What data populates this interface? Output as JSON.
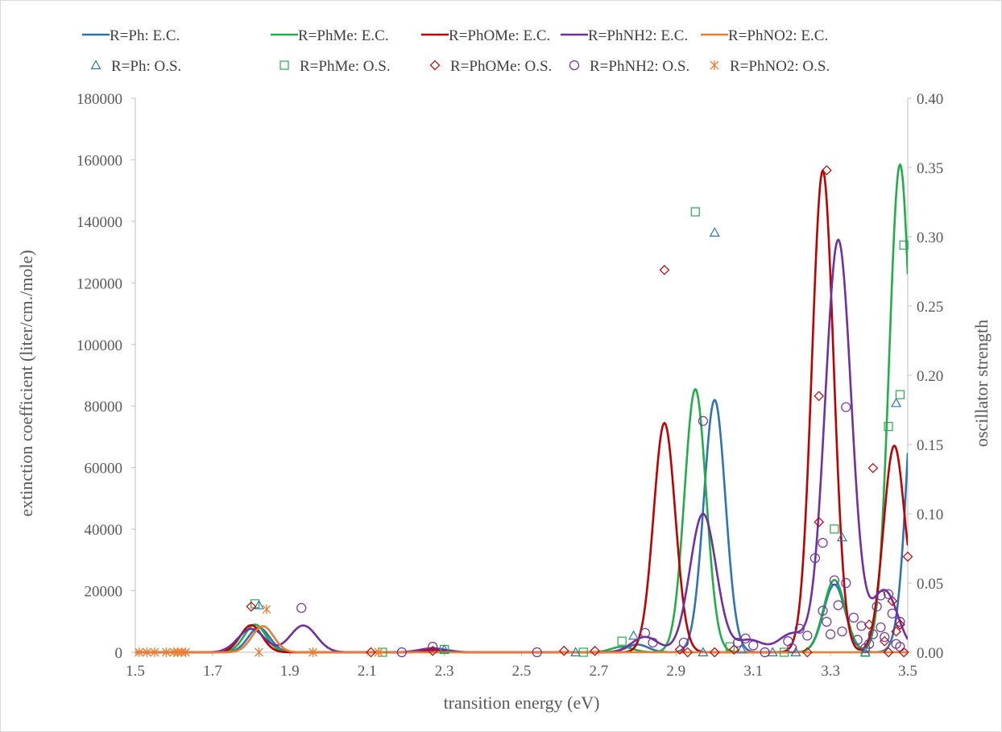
{
  "chart_data": {
    "type": "line",
    "title": "",
    "xlabel": "transition energy (eV)",
    "ylabel": "extinction coefficient (liter/cm./mole)",
    "y2label": "oscillator strength",
    "xlim": [
      1.5,
      3.5
    ],
    "ylim": [
      0,
      180000
    ],
    "y2lim": [
      0,
      0.4
    ],
    "x_ticks": [
      "1.5",
      "1.7",
      "1.9",
      "2.1",
      "2.3",
      "2.5",
      "2.7",
      "2.9",
      "3.1",
      "3.3",
      "3.5"
    ],
    "y_ticks": [
      "0",
      "20000",
      "40000",
      "60000",
      "80000",
      "100000",
      "120000",
      "140000",
      "160000",
      "180000"
    ],
    "y2_ticks": [
      "0.00",
      "0.05",
      "0.10",
      "0.15",
      "0.20",
      "0.25",
      "0.30",
      "0.35",
      "0.40"
    ],
    "grid": false,
    "legend_position": "top",
    "legend": [
      {
        "key": "ph_ec",
        "label": "R=Ph: E.C.",
        "kind": "line",
        "color": "#2e74b5"
      },
      {
        "key": "phme_ec",
        "label": "R=PhMe: E.C.",
        "kind": "line",
        "color": "#22ad4b"
      },
      {
        "key": "phome_ec",
        "label": "R=PhOMe: E.C.",
        "kind": "line",
        "color": "#c00000"
      },
      {
        "key": "phnh2_ec",
        "label": "R=PhNH2: E.C.",
        "kind": "line",
        "color": "#7030a0"
      },
      {
        "key": "phno2_ec",
        "label": "R=PhNO2: E.C.",
        "kind": "line",
        "color": "#ed7d31"
      },
      {
        "key": "ph_os",
        "label": "R=Ph: O.S.",
        "kind": "triangle",
        "color": "#2e74b5"
      },
      {
        "key": "phme_os",
        "label": "R=PhMe: O.S.",
        "kind": "square",
        "color": "#22ad4b"
      },
      {
        "key": "phome_os",
        "label": "R=PhOMe: O.S.",
        "kind": "diamond",
        "color": "#c00000"
      },
      {
        "key": "phnh2_os",
        "label": "R=PhNH2: O.S.",
        "kind": "circle",
        "color": "#7030a0"
      },
      {
        "key": "phno2_os",
        "label": "R=PhNO2: O.S.",
        "kind": "asterisk",
        "color": "#ed7d31"
      }
    ],
    "ec_series": [
      {
        "key": "ph_ec",
        "name": "R=Ph: E.C.",
        "color": "#2e74b5",
        "sigma": 0.028,
        "peaks": [
          [
            1.82,
            8000
          ],
          [
            2.28,
            900
          ],
          [
            2.8,
            2500
          ],
          [
            3.0,
            82000
          ],
          [
            3.31,
            22000
          ],
          [
            3.53,
            115000
          ]
        ]
      },
      {
        "key": "phme_ec",
        "name": "R=PhMe: E.C.",
        "color": "#22ad4b",
        "sigma": 0.028,
        "peaks": [
          [
            1.81,
            9000
          ],
          [
            2.29,
            900
          ],
          [
            2.76,
            1800
          ],
          [
            2.95,
            85500
          ],
          [
            3.31,
            23500
          ],
          [
            3.48,
            158500
          ]
        ]
      },
      {
        "key": "phome_ec",
        "name": "R=PhOMe: E.C.",
        "color": "#c00000",
        "sigma": 0.028,
        "peaks": [
          [
            1.8,
            8800
          ],
          [
            2.27,
            800
          ],
          [
            2.87,
            74500
          ],
          [
            3.28,
            156500
          ],
          [
            3.465,
            67000
          ],
          [
            3.56,
            40000
          ]
        ]
      },
      {
        "key": "phnh2_ec",
        "name": "R=PhNH2: E.C.",
        "color": "#7030a0",
        "sigma": 0.034,
        "peaks": [
          [
            1.8,
            7600
          ],
          [
            1.935,
            8700
          ],
          [
            2.27,
            1300
          ],
          [
            2.82,
            5000
          ],
          [
            2.97,
            45000
          ],
          [
            3.09,
            4000
          ],
          [
            3.2,
            6000
          ],
          [
            3.32,
            134000
          ],
          [
            3.44,
            20000
          ]
        ]
      },
      {
        "key": "phno2_ec",
        "name": "R=PhNO2: E.C.",
        "color": "#ed7d31",
        "sigma": 0.028,
        "peaks": [
          [
            1.83,
            8500
          ]
        ]
      }
    ],
    "os_series": [
      {
        "key": "ph_os",
        "name": "R=Ph: O.S.",
        "marker": "triangle",
        "color": "#2e74b5",
        "points": [
          [
            1.82,
            0.034
          ],
          [
            2.3,
            0.002
          ],
          [
            2.64,
            0.0
          ],
          [
            2.79,
            0.012
          ],
          [
            2.97,
            0.0
          ],
          [
            3.0,
            0.303
          ],
          [
            3.07,
            0.002
          ],
          [
            3.15,
            0.0
          ],
          [
            3.21,
            0.0
          ],
          [
            3.33,
            0.083
          ],
          [
            3.39,
            0.0
          ],
          [
            3.47,
            0.18
          ]
        ]
      },
      {
        "key": "phme_os",
        "name": "R=PhMe: O.S.",
        "marker": "square",
        "color": "#22ad4b",
        "points": [
          [
            1.81,
            0.035
          ],
          [
            2.14,
            0.0
          ],
          [
            2.3,
            0.002
          ],
          [
            2.66,
            0.0
          ],
          [
            2.76,
            0.008
          ],
          [
            2.95,
            0.318
          ],
          [
            3.04,
            0.004
          ],
          [
            3.18,
            0.0
          ],
          [
            3.31,
            0.089
          ],
          [
            3.39,
            0.0
          ],
          [
            3.45,
            0.163
          ],
          [
            3.48,
            0.186
          ],
          [
            3.49,
            0.294
          ]
        ]
      },
      {
        "key": "phome_os",
        "name": "R=PhOMe: O.S.",
        "marker": "diamond",
        "color": "#c00000",
        "points": [
          [
            1.8,
            0.033
          ],
          [
            2.11,
            0.0
          ],
          [
            2.27,
            0.001
          ],
          [
            2.61,
            0.001
          ],
          [
            2.69,
            0.001
          ],
          [
            2.87,
            0.276
          ],
          [
            2.91,
            0.002
          ],
          [
            2.93,
            0.0
          ],
          [
            3.0,
            0.0
          ],
          [
            3.05,
            0.002
          ],
          [
            3.24,
            0.0
          ],
          [
            3.27,
            0.185
          ],
          [
            3.27,
            0.094
          ],
          [
            3.29,
            0.348
          ],
          [
            3.4,
            0.02
          ],
          [
            3.41,
            0.133
          ],
          [
            3.44,
            0.008
          ],
          [
            3.45,
            0.0
          ],
          [
            3.46,
            0.037
          ],
          [
            3.47,
            0.015
          ],
          [
            3.48,
            0.02
          ],
          [
            3.49,
            0.0
          ],
          [
            3.5,
            0.069
          ]
        ]
      },
      {
        "key": "phnh2_os",
        "name": "R=PhNH2: O.S.",
        "marker": "circle",
        "color": "#7030a0",
        "points": [
          [
            1.93,
            0.032
          ],
          [
            2.19,
            0.0
          ],
          [
            2.27,
            0.004
          ],
          [
            2.54,
            0.0
          ],
          [
            2.82,
            0.014
          ],
          [
            2.84,
            0.007
          ],
          [
            2.92,
            0.007
          ],
          [
            2.97,
            0.167
          ],
          [
            3.06,
            0.007
          ],
          [
            3.08,
            0.01
          ],
          [
            3.1,
            0.005
          ],
          [
            3.13,
            0.0
          ],
          [
            3.19,
            0.008
          ],
          [
            3.2,
            0.003
          ],
          [
            3.22,
            0.017
          ],
          [
            3.24,
            0.012
          ],
          [
            3.26,
            0.068
          ],
          [
            3.28,
            0.079
          ],
          [
            3.28,
            0.03
          ],
          [
            3.29,
            0.022
          ],
          [
            3.3,
            0.013
          ],
          [
            3.31,
            0.052
          ],
          [
            3.32,
            0.034
          ],
          [
            3.33,
            0.015
          ],
          [
            3.34,
            0.177
          ],
          [
            3.34,
            0.05
          ],
          [
            3.36,
            0.025
          ],
          [
            3.37,
            0.009
          ],
          [
            3.38,
            0.019
          ],
          [
            3.39,
            0.003
          ],
          [
            3.4,
            0.006
          ],
          [
            3.41,
            0.013
          ],
          [
            3.42,
            0.033
          ],
          [
            3.43,
            0.018
          ],
          [
            3.43,
            0.041
          ],
          [
            3.44,
            0.011
          ],
          [
            3.45,
            0.042
          ],
          [
            3.46,
            0.028
          ],
          [
            3.47,
            0.006
          ],
          [
            3.48,
            0.004
          ],
          [
            3.48,
            0.022
          ]
        ]
      },
      {
        "key": "phno2_os",
        "name": "R=PhNO2: O.S.",
        "marker": "asterisk",
        "color": "#ed7d31",
        "points": [
          [
            1.51,
            0.0
          ],
          [
            1.53,
            0.0
          ],
          [
            1.55,
            0.0
          ],
          [
            1.58,
            0.0
          ],
          [
            1.6,
            0.0
          ],
          [
            1.61,
            0.0
          ],
          [
            1.62,
            0.0
          ],
          [
            1.63,
            0.0
          ],
          [
            1.82,
            0.0
          ],
          [
            1.84,
            0.031
          ],
          [
            1.96,
            0.0
          ],
          [
            2.13,
            0.0
          ]
        ]
      }
    ]
  }
}
